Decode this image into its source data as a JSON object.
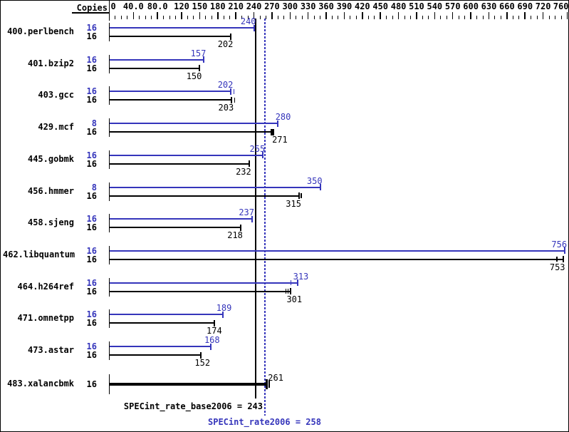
{
  "chart_data": {
    "type": "bar",
    "orientation": "horizontal",
    "copies_column_header": "Copies",
    "axis": {
      "position": "top",
      "min": 0,
      "max": 760,
      "major_ticks": [
        0,
        40,
        80,
        120,
        150,
        180,
        210,
        240,
        270,
        300,
        330,
        360,
        390,
        420,
        450,
        480,
        510,
        540,
        570,
        600,
        630,
        660,
        690,
        720,
        760
      ],
      "major_tick_labels": [
        "0",
        "40.0",
        "80.0",
        "120",
        "150",
        "180",
        "210",
        "240",
        "270",
        "300",
        "330",
        "360",
        "390",
        "420",
        "450",
        "480",
        "510",
        "540",
        "570",
        "600",
        "630",
        "660",
        "690",
        "720",
        "760"
      ],
      "minor_tick_step": 10
    },
    "series": [
      {
        "name": "peak",
        "color": "#3535bb"
      },
      {
        "name": "base",
        "color": "#000000"
      }
    ],
    "benchmarks": [
      {
        "name": "400.perlbench",
        "peak_copies": "16",
        "base_copies": "16",
        "peak": 240,
        "base": 202
      },
      {
        "name": "401.bzip2",
        "peak_copies": "16",
        "base_copies": "16",
        "peak": 157,
        "base": 150
      },
      {
        "name": "403.gcc",
        "peak_copies": "16",
        "base_copies": "16",
        "peak": 202,
        "base": 203
      },
      {
        "name": "429.mcf",
        "peak_copies": "8",
        "base_copies": "16",
        "peak": 280,
        "base": 271
      },
      {
        "name": "445.gobmk",
        "peak_copies": "16",
        "base_copies": "16",
        "peak": 255,
        "base": 232
      },
      {
        "name": "456.hmmer",
        "peak_copies": "8",
        "base_copies": "16",
        "peak": 350,
        "base": 315
      },
      {
        "name": "458.sjeng",
        "peak_copies": "16",
        "base_copies": "16",
        "peak": 237,
        "base": 218
      },
      {
        "name": "462.libquantum",
        "peak_copies": "16",
        "base_copies": "16",
        "peak": 756,
        "base": 753
      },
      {
        "name": "464.h264ref",
        "peak_copies": "16",
        "base_copies": "16",
        "peak": 313,
        "base": 301
      },
      {
        "name": "471.omnetpp",
        "peak_copies": "16",
        "base_copies": "16",
        "peak": 189,
        "base": 174
      },
      {
        "name": "473.astar",
        "peak_copies": "16",
        "base_copies": "16",
        "peak": 168,
        "base": 152
      },
      {
        "name": "483.xalancbmk",
        "copies": "16",
        "base": 261,
        "base_only": true
      }
    ],
    "reference_lines": [
      {
        "name": "base_mean",
        "value": 243,
        "style": "solid",
        "color": "#000000",
        "label": "SPECint_rate_base2006 = 243"
      },
      {
        "name": "peak_mean",
        "value": 258,
        "style": "dotted",
        "color": "#3535bb",
        "label": "SPECint_rate2006 = 258"
      }
    ]
  },
  "colors": {
    "peak_blue": "#3535bb",
    "black": "#000000",
    "background": "#ffffff"
  }
}
